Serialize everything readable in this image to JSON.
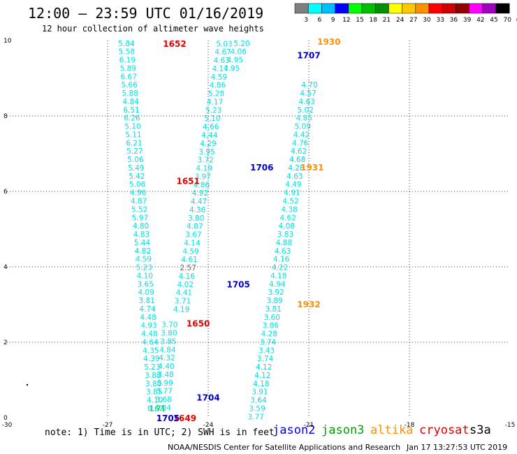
{
  "header": {
    "title": "12:00 – 23:59 UTC 01/16/2019",
    "subtitle": "12 hour collection of altimeter wave heights"
  },
  "color_scale": {
    "labels": [
      "3",
      "6",
      "9",
      "12",
      "15",
      "18",
      "21",
      "24",
      "27",
      "30",
      "33",
      "36",
      "39",
      "42",
      "45",
      "70",
      "(ft)"
    ],
    "colors": [
      "#7f7f7f",
      "#00ffff",
      "#00bfff",
      "#0000ff",
      "#00ff00",
      "#00c000",
      "#009000",
      "#ffff00",
      "#ffc800",
      "#ff9000",
      "#ff0000",
      "#d00000",
      "#900000",
      "#ff00ff",
      "#a000c0",
      "#000000"
    ]
  },
  "chart_data": {
    "type": "scatter",
    "xlim": [
      -30,
      -15
    ],
    "ylim": [
      0,
      10
    ],
    "x_ticks": [
      "-30",
      "-27",
      "-24",
      "-21",
      "-18",
      "-15"
    ],
    "y_ticks": [
      "0",
      "2",
      "4",
      "6",
      "8",
      "10"
    ],
    "grid": true,
    "tracks": [
      {
        "satellite": "jason2",
        "color": "#00e0e0",
        "points": [
          {
            "x": -26.44,
            "y": 9.93,
            "label": "5.84"
          },
          {
            "x": -26.43,
            "y": 9.71,
            "label": "5.58"
          },
          {
            "x": -26.41,
            "y": 9.49,
            "label": "6.19"
          },
          {
            "x": -26.39,
            "y": 9.27,
            "label": "5.89"
          },
          {
            "x": -26.37,
            "y": 9.05,
            "label": "6.67"
          },
          {
            "x": -26.35,
            "y": 8.83,
            "label": "5.66"
          },
          {
            "x": -26.33,
            "y": 8.61,
            "label": "5.88"
          },
          {
            "x": -26.31,
            "y": 8.39,
            "label": "4.84"
          },
          {
            "x": -26.29,
            "y": 8.17,
            "label": "6.51"
          },
          {
            "x": -26.27,
            "y": 7.95,
            "label": "6.26"
          },
          {
            "x": -26.25,
            "y": 7.73,
            "label": "5.10"
          },
          {
            "x": -26.23,
            "y": 7.51,
            "label": "5.11"
          },
          {
            "x": -26.21,
            "y": 7.29,
            "label": "6.21"
          },
          {
            "x": -26.19,
            "y": 7.07,
            "label": "5.27"
          },
          {
            "x": -26.17,
            "y": 6.85,
            "label": "5.06"
          },
          {
            "x": -26.15,
            "y": 6.63,
            "label": "5.49"
          },
          {
            "x": -26.13,
            "y": 6.41,
            "label": "5.42"
          },
          {
            "x": -26.11,
            "y": 6.19,
            "label": "5.06"
          },
          {
            "x": -26.09,
            "y": 5.97,
            "label": "4.96"
          },
          {
            "x": -26.07,
            "y": 5.75,
            "label": "4.87"
          },
          {
            "x": -26.05,
            "y": 5.53,
            "label": "5.52"
          },
          {
            "x": -26.03,
            "y": 5.31,
            "label": "5.97"
          },
          {
            "x": -26.01,
            "y": 5.09,
            "label": "4.80"
          },
          {
            "x": -25.99,
            "y": 4.87,
            "label": "4.83"
          },
          {
            "x": -25.97,
            "y": 4.65,
            "label": "5.44"
          },
          {
            "x": -25.95,
            "y": 4.43,
            "label": "4.82"
          },
          {
            "x": -25.93,
            "y": 4.21,
            "label": "4.59"
          },
          {
            "x": -25.91,
            "y": 3.99,
            "label": "5.23"
          },
          {
            "x": -25.89,
            "y": 3.77,
            "label": "4.10"
          },
          {
            "x": -25.87,
            "y": 3.55,
            "label": "3.65"
          },
          {
            "x": -25.85,
            "y": 3.33,
            "label": "4.09"
          },
          {
            "x": -25.83,
            "y": 3.11,
            "label": "3.81"
          },
          {
            "x": -25.81,
            "y": 2.89,
            "label": "4.74"
          },
          {
            "x": -25.79,
            "y": 2.67,
            "label": "4.48"
          },
          {
            "x": -25.77,
            "y": 2.45,
            "label": "4.93"
          },
          {
            "x": -25.75,
            "y": 2.23,
            "label": "4.48"
          },
          {
            "x": -25.73,
            "y": 2.01,
            "label": "4.64"
          },
          {
            "x": -25.71,
            "y": 1.79,
            "label": "4.35"
          },
          {
            "x": -25.69,
            "y": 1.57,
            "label": "4.39"
          },
          {
            "x": -25.67,
            "y": 1.35,
            "label": "5.23"
          },
          {
            "x": -25.65,
            "y": 1.13,
            "label": "3.88"
          },
          {
            "x": -25.63,
            "y": 0.91,
            "label": "3.80"
          },
          {
            "x": -25.61,
            "y": 0.69,
            "label": "3.85"
          },
          {
            "x": -25.59,
            "y": 0.47,
            "label": "4.10"
          },
          {
            "x": -25.57,
            "y": 0.25,
            "label": "8.67"
          }
        ]
      },
      {
        "satellite": "jason2",
        "color": "#00e0e0",
        "points": [
          {
            "x": -25.35,
            "y": 0.27,
            "label": "4.04"
          },
          {
            "x": -25.33,
            "y": 0.49,
            "label": "3.68"
          },
          {
            "x": -25.31,
            "y": 0.71,
            "label": "3.77"
          },
          {
            "x": -25.29,
            "y": 0.93,
            "label": "3.99"
          },
          {
            "x": -25.27,
            "y": 1.15,
            "label": "3.48"
          },
          {
            "x": -25.25,
            "y": 1.37,
            "label": "4.40"
          },
          {
            "x": -25.23,
            "y": 1.59,
            "label": "4.32"
          },
          {
            "x": -25.21,
            "y": 1.81,
            "label": "4.84"
          },
          {
            "x": -25.19,
            "y": 2.03,
            "label": "3.85"
          },
          {
            "x": -25.17,
            "y": 2.25,
            "label": "3.80"
          },
          {
            "x": -25.15,
            "y": 2.47,
            "label": "3.70"
          },
          {
            "x": -24.8,
            "y": 2.88,
            "label": "4.19"
          },
          {
            "x": -24.76,
            "y": 3.1,
            "label": "3.71"
          },
          {
            "x": -24.72,
            "y": 3.32,
            "label": "4.41"
          },
          {
            "x": -24.68,
            "y": 3.54,
            "label": "4.02"
          },
          {
            "x": -24.64,
            "y": 3.76,
            "label": "4.16"
          },
          {
            "x": -24.6,
            "y": 3.98,
            "label": "2.57"
          },
          {
            "x": -24.56,
            "y": 4.2,
            "label": "4.61"
          },
          {
            "x": -24.52,
            "y": 4.42,
            "label": "4.59"
          },
          {
            "x": -24.48,
            "y": 4.64,
            "label": "4.14"
          },
          {
            "x": -24.44,
            "y": 4.86,
            "label": "3.67"
          },
          {
            "x": -24.4,
            "y": 5.08,
            "label": "4.87"
          },
          {
            "x": -24.36,
            "y": 5.3,
            "label": "3.80"
          },
          {
            "x": -24.32,
            "y": 5.52,
            "label": "4.36"
          },
          {
            "x": -24.28,
            "y": 5.74,
            "label": "4.47"
          },
          {
            "x": -24.24,
            "y": 5.96,
            "label": "4.92"
          },
          {
            "x": -24.2,
            "y": 6.18,
            "label": "4.86"
          },
          {
            "x": -24.16,
            "y": 6.4,
            "label": "3.97"
          },
          {
            "x": -24.12,
            "y": 6.62,
            "label": "4.19"
          },
          {
            "x": -24.08,
            "y": 6.84,
            "label": "3.72"
          },
          {
            "x": -24.04,
            "y": 7.06,
            "label": "3.95"
          },
          {
            "x": -24.0,
            "y": 7.28,
            "label": "4.29"
          },
          {
            "x": -23.96,
            "y": 7.5,
            "label": "4.44"
          },
          {
            "x": -23.92,
            "y": 7.72,
            "label": "4.66"
          },
          {
            "x": -23.88,
            "y": 7.94,
            "label": "5.10"
          },
          {
            "x": -23.84,
            "y": 8.16,
            "label": "5.23"
          },
          {
            "x": -23.8,
            "y": 8.38,
            "label": "4.17"
          },
          {
            "x": -23.76,
            "y": 8.6,
            "label": "5.28"
          },
          {
            "x": -23.72,
            "y": 8.82,
            "label": "4.86"
          },
          {
            "x": -23.68,
            "y": 9.04,
            "label": "4.59"
          },
          {
            "x": -23.64,
            "y": 9.26,
            "label": "4.17"
          },
          {
            "x": -23.6,
            "y": 9.48,
            "label": "4.63"
          },
          {
            "x": -23.56,
            "y": 9.7,
            "label": "4.67"
          },
          {
            "x": -23.52,
            "y": 9.92,
            "label": "5.03"
          }
        ]
      },
      {
        "satellite": "jason2",
        "color": "#00e0e0",
        "points": [
          {
            "x": -22.58,
            "y": 0.03,
            "label": "3.77"
          },
          {
            "x": -22.54,
            "y": 0.25,
            "label": "3.59"
          },
          {
            "x": -22.5,
            "y": 0.47,
            "label": "3.64"
          },
          {
            "x": -22.46,
            "y": 0.69,
            "label": "3.91"
          },
          {
            "x": -22.42,
            "y": 0.91,
            "label": "4.18"
          },
          {
            "x": -22.38,
            "y": 1.13,
            "label": "4.12"
          },
          {
            "x": -22.34,
            "y": 1.35,
            "label": "4.12"
          },
          {
            "x": -22.3,
            "y": 1.57,
            "label": "3.74"
          },
          {
            "x": -22.26,
            "y": 1.79,
            "label": "3.43"
          },
          {
            "x": -22.22,
            "y": 2.01,
            "label": "3.74"
          },
          {
            "x": -22.18,
            "y": 2.23,
            "label": "4.28"
          },
          {
            "x": -22.14,
            "y": 2.45,
            "label": "3.86"
          },
          {
            "x": -22.1,
            "y": 2.67,
            "label": "3.60"
          },
          {
            "x": -22.06,
            "y": 2.89,
            "label": "3.81"
          },
          {
            "x": -22.02,
            "y": 3.11,
            "label": "3.89"
          },
          {
            "x": -21.98,
            "y": 3.33,
            "label": "3.92"
          },
          {
            "x": -21.94,
            "y": 3.55,
            "label": "4.94"
          },
          {
            "x": -21.9,
            "y": 3.77,
            "label": "4.18"
          },
          {
            "x": -21.86,
            "y": 3.99,
            "label": "4.22"
          },
          {
            "x": -21.82,
            "y": 4.21,
            "label": "4.16"
          },
          {
            "x": -21.78,
            "y": 4.43,
            "label": "4.63"
          },
          {
            "x": -21.74,
            "y": 4.65,
            "label": "4.88"
          },
          {
            "x": -21.7,
            "y": 4.87,
            "label": "3.83"
          },
          {
            "x": -21.66,
            "y": 5.09,
            "label": "4.08"
          },
          {
            "x": -21.62,
            "y": 5.31,
            "label": "4.62"
          },
          {
            "x": -21.58,
            "y": 5.53,
            "label": "4.38"
          },
          {
            "x": -21.54,
            "y": 5.75,
            "label": "4.52"
          },
          {
            "x": -21.5,
            "y": 5.97,
            "label": "4.91"
          },
          {
            "x": -21.46,
            "y": 6.19,
            "label": "4.49"
          },
          {
            "x": -21.42,
            "y": 6.41,
            "label": "4.63"
          },
          {
            "x": -21.38,
            "y": 6.63,
            "label": "4.28"
          },
          {
            "x": -21.34,
            "y": 6.85,
            "label": "4.68"
          },
          {
            "x": -21.3,
            "y": 7.07,
            "label": "4.62"
          },
          {
            "x": -21.26,
            "y": 7.29,
            "label": "4.76"
          },
          {
            "x": -21.22,
            "y": 7.51,
            "label": "4.42"
          },
          {
            "x": -21.18,
            "y": 7.73,
            "label": "5.09"
          },
          {
            "x": -21.14,
            "y": 7.95,
            "label": "4.85"
          },
          {
            "x": -21.1,
            "y": 8.17,
            "label": "5.02"
          },
          {
            "x": -21.06,
            "y": 8.39,
            "label": "4.63"
          },
          {
            "x": -21.02,
            "y": 8.61,
            "label": "4.57"
          },
          {
            "x": -20.98,
            "y": 8.83,
            "label": "4.70"
          }
        ]
      },
      {
        "satellite": "jason2",
        "color": "#00e0e0",
        "points": [
          {
            "x": -23.0,
            "y": 9.93,
            "label": "5.20"
          },
          {
            "x": -23.1,
            "y": 9.71,
            "label": "4.06"
          },
          {
            "x": -23.2,
            "y": 9.49,
            "label": "4.95"
          },
          {
            "x": -23.3,
            "y": 9.27,
            "label": "4.95"
          }
        ]
      },
      {
        "satellite": "jason3",
        "color": "#00c000",
        "points": [
          {
            "x": -25.51,
            "y": 0.25,
            "label": "1.71"
          }
        ]
      }
    ],
    "time_labels": [
      {
        "text": "1652",
        "x": -25.0,
        "y": 9.93,
        "color": "#e00000"
      },
      {
        "text": "1651",
        "x": -24.6,
        "y": 6.29,
        "color": "#e00000"
      },
      {
        "text": "1650",
        "x": -24.3,
        "y": 2.51,
        "color": "#e00000"
      },
      {
        "text": "1704",
        "x": -24.0,
        "y": 0.55,
        "color": "#0000cc"
      },
      {
        "text": "1705",
        "x": -23.1,
        "y": 3.55,
        "color": "#0000cc"
      },
      {
        "text": "1706",
        "x": -22.4,
        "y": 6.65,
        "color": "#0000cc"
      },
      {
        "text": "1707",
        "x": -21.0,
        "y": 9.62,
        "color": "#0000cc"
      },
      {
        "text": "1930",
        "x": -20.4,
        "y": 9.98,
        "color": "#ff9000"
      },
      {
        "text": "1931",
        "x": -20.9,
        "y": 6.65,
        "color": "#ff9000"
      },
      {
        "text": "1932",
        "x": -21.0,
        "y": 3.02,
        "color": "#ff9000"
      },
      {
        "text": "1649",
        "x": -24.7,
        "y": 0.0,
        "color": "#e00000"
      },
      {
        "text": "1705",
        "x": -25.2,
        "y": 0.0,
        "color": "#0000cc"
      }
    ]
  },
  "note": "note: 1) Time is in UTC; 2) SWH is in feet",
  "legend": [
    {
      "name": "jason2",
      "color": "#0000ee"
    },
    {
      "name": "jason3",
      "color": "#00a000"
    },
    {
      "name": "altika",
      "color": "#ff9000"
    },
    {
      "name": "cryosat",
      "color": "#e00000"
    },
    {
      "name": "s3a",
      "color": "#000000"
    }
  ],
  "footer": {
    "credit": "NOAA/NESDIS Center for Satellite Applications and Research",
    "timestamp": "Jan 17 13:27:53 UTC 2019"
  }
}
